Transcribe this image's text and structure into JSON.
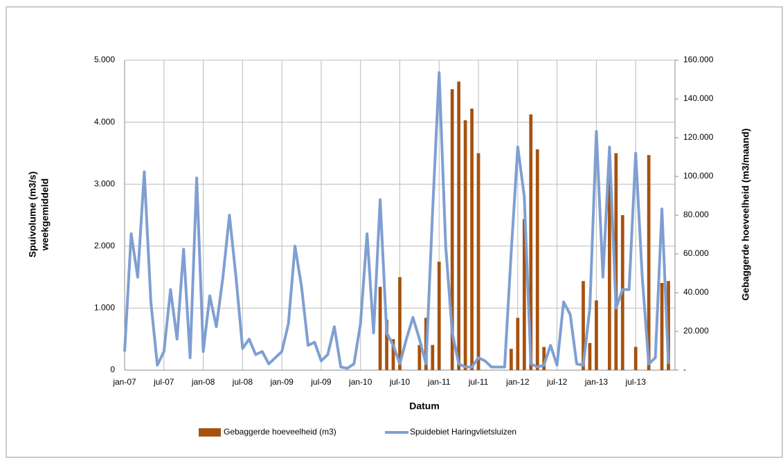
{
  "chart_data": {
    "type": "bar-line",
    "xlabel": "Datum",
    "ylabel": [
      "Spuivolume (m3/s)",
      "weekgemiddeld"
    ],
    "y2label": "Gebaggerde hoeveelheid (m3/maand)",
    "categories": [
      "jan-07",
      null,
      null,
      null,
      null,
      null,
      "jul-07",
      null,
      null,
      null,
      null,
      null,
      "jan-08",
      null,
      null,
      null,
      null,
      null,
      "jul-08",
      null,
      null,
      null,
      null,
      null,
      "jan-09",
      null,
      null,
      null,
      null,
      null,
      "jul-09",
      null,
      null,
      null,
      null,
      null,
      "jan-10",
      null,
      null,
      null,
      null,
      null,
      "jul-10",
      null,
      null,
      null,
      null,
      null,
      "jan-11",
      null,
      null,
      null,
      null,
      null,
      "jul-11",
      null,
      null,
      null,
      null,
      null,
      "jan-12",
      null,
      null,
      null,
      null,
      null,
      "jul-12",
      null,
      null,
      null,
      null,
      null,
      "jan-13",
      null,
      null,
      null,
      null,
      null,
      "jul-13",
      null,
      null,
      null,
      null,
      null
    ],
    "ylim": [
      0,
      5000
    ],
    "yticks": [
      0,
      {
        "value": 1000,
        "label": "1.000"
      },
      {
        "value": 2000,
        "label": "2.000"
      },
      {
        "value": 3000,
        "label": "3.000"
      },
      {
        "value": 4000,
        "label": "4.000"
      },
      {
        "value": 5000,
        "label": "5.000"
      }
    ],
    "y2lim": [
      0,
      160000
    ],
    "y2ticks": [
      {
        "value": 0,
        "label": "-"
      },
      {
        "value": 20000,
        "label": "20.000"
      },
      {
        "value": 40000,
        "label": "40.000"
      },
      {
        "value": 60000,
        "label": "60.000"
      },
      {
        "value": 80000,
        "label": "80.000"
      },
      {
        "value": 100000,
        "label": "100.000"
      },
      {
        "value": 120000,
        "label": "120.000"
      },
      {
        "value": 140000,
        "label": "140.000"
      },
      {
        "value": 160000,
        "label": "160.000"
      }
    ],
    "grid": true,
    "legend": "bottom",
    "series": [
      {
        "name": "Gebaggerde hoeveelheid (m3)",
        "type": "bar",
        "axis": "y2",
        "color": "#a5520f",
        "values": [
          null,
          null,
          null,
          null,
          null,
          null,
          null,
          null,
          null,
          null,
          null,
          null,
          null,
          null,
          null,
          null,
          null,
          null,
          null,
          null,
          null,
          null,
          null,
          null,
          null,
          null,
          null,
          null,
          null,
          null,
          null,
          null,
          null,
          null,
          null,
          null,
          null,
          null,
          null,
          43000,
          26000,
          16000,
          48000,
          null,
          null,
          13000,
          27000,
          13000,
          56000,
          null,
          145000,
          149000,
          129000,
          135000,
          112000,
          null,
          null,
          null,
          null,
          11000,
          27000,
          78000,
          132000,
          114000,
          12000,
          null,
          null,
          null,
          null,
          null,
          46000,
          14000,
          36000,
          null,
          110000,
          112000,
          80000,
          null,
          12000,
          null,
          111000,
          null,
          45000,
          46000
        ]
      },
      {
        "name": "Spuidebiet Haringvlietsluizen",
        "type": "line",
        "axis": "y",
        "color": "#7f9fd2",
        "values": [
          300,
          2200,
          1500,
          3200,
          1100,
          80,
          300,
          1300,
          500,
          1950,
          200,
          3100,
          300,
          1200,
          700,
          1500,
          2500,
          1500,
          350,
          500,
          250,
          300,
          100,
          200,
          300,
          750,
          2000,
          1350,
          400,
          450,
          150,
          250,
          700,
          50,
          30,
          100,
          750,
          2200,
          600,
          2750,
          600,
          400,
          100,
          500,
          850,
          500,
          100,
          2550,
          4800,
          2000,
          600,
          100,
          50,
          50,
          200,
          150,
          50,
          50,
          50,
          1900,
          3600,
          2800,
          100,
          50,
          80,
          400,
          80,
          1100,
          900,
          100,
          80,
          1000,
          3850,
          1500,
          3600,
          1000,
          1300,
          1300,
          3500,
          1500,
          100,
          200,
          2600,
          100
        ]
      }
    ]
  }
}
